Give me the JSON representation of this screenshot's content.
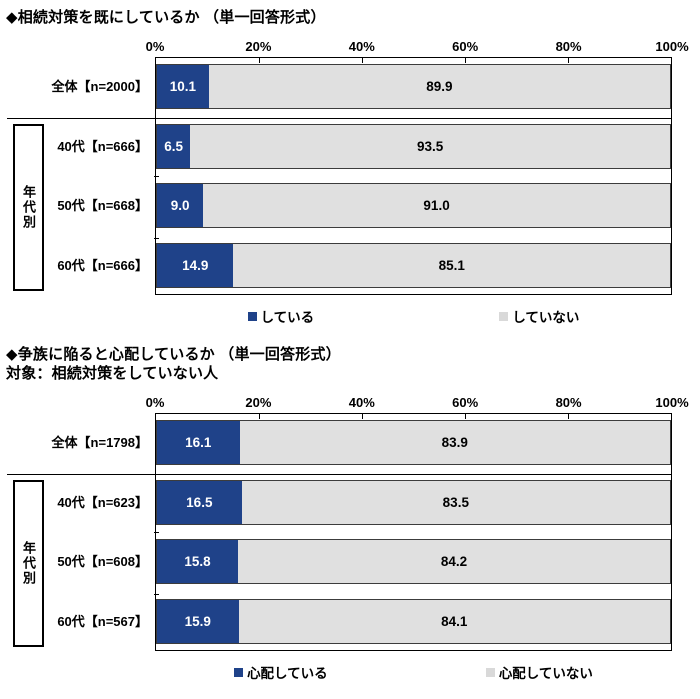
{
  "page": {
    "background": "#FFFFFF",
    "accent_blue": "#1F4289",
    "bar_gray": "#E0E0E0",
    "legend_gray": "#D9D9D9"
  },
  "chart_data": [
    {
      "type": "bar",
      "orientation": "horizontal",
      "stacked": true,
      "title": "◆相続対策を既にしているか （単一回答形式）",
      "categories": [
        "全体【n=2000】",
        "40代【n=666】",
        "50代【n=668】",
        "60代【n=666】"
      ],
      "group_label": "年代別",
      "group_rows": [
        1,
        2,
        3
      ],
      "xlim": [
        0,
        100
      ],
      "x_ticks": [
        "0%",
        "20%",
        "40%",
        "60%",
        "80%",
        "100%"
      ],
      "legend_position": "bottom",
      "series": [
        {
          "name": "している",
          "color": "#1F4289",
          "values": [
            10.1,
            6.5,
            9.0,
            14.9
          ],
          "labels": [
            "10.1",
            "6.5",
            "9.0",
            "14.9"
          ]
        },
        {
          "name": "していない",
          "color": "#E0E0E0",
          "values": [
            89.9,
            93.5,
            91.0,
            85.1
          ],
          "labels": [
            "89.9",
            "93.5",
            "91.0",
            "85.1"
          ]
        }
      ]
    },
    {
      "type": "bar",
      "orientation": "horizontal",
      "stacked": true,
      "title": "◆争族に陥ると心配しているか （単一回答形式）",
      "subtitle": "対象：相続対策をしていない人",
      "categories": [
        "全体【n=1798】",
        "40代【n=623】",
        "50代【n=608】",
        "60代【n=567】"
      ],
      "group_label": "年代別",
      "group_rows": [
        1,
        2,
        3
      ],
      "xlim": [
        0,
        100
      ],
      "x_ticks": [
        "0%",
        "20%",
        "40%",
        "60%",
        "80%",
        "100%"
      ],
      "legend_position": "bottom",
      "series": [
        {
          "name": "心配している",
          "color": "#1F4289",
          "values": [
            16.1,
            16.5,
            15.8,
            15.9
          ],
          "labels": [
            "16.1",
            "16.5",
            "15.8",
            "15.9"
          ]
        },
        {
          "name": "心配していない",
          "color": "#E0E0E0",
          "values": [
            83.9,
            83.5,
            84.2,
            84.1
          ],
          "labels": [
            "83.9",
            "83.5",
            "84.2",
            "84.1"
          ]
        }
      ]
    }
  ]
}
